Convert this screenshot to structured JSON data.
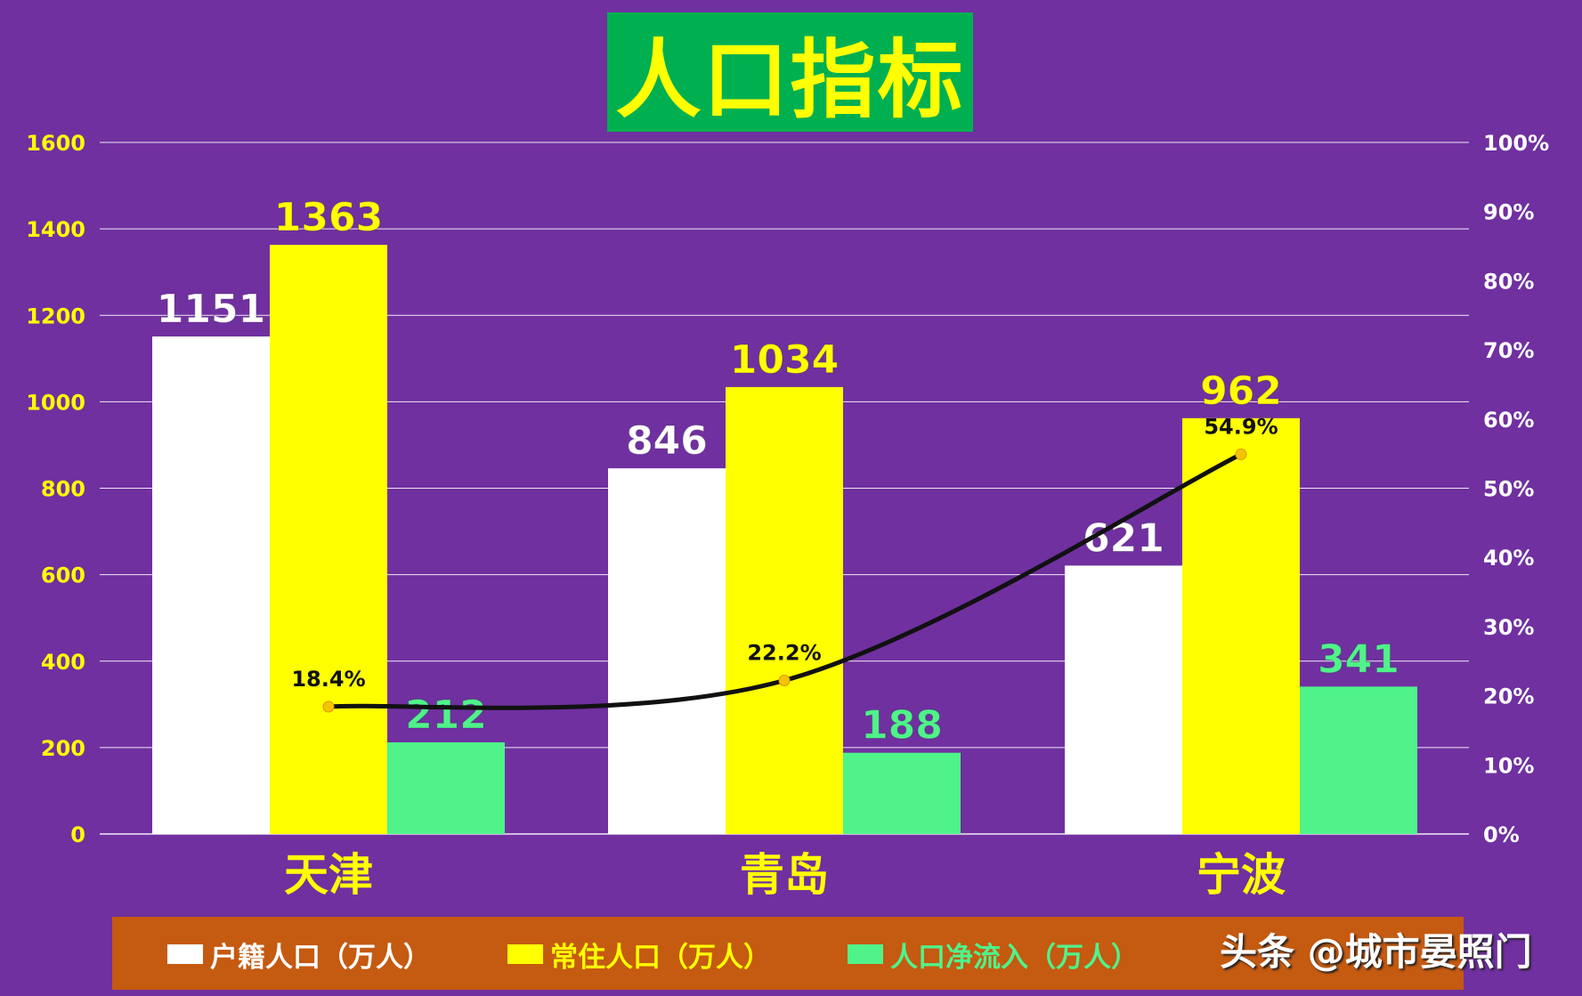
{
  "title": "人口指标",
  "watermark": "头条 @城市晏照门",
  "colors": {
    "background": "#7030a0",
    "title_bg": "#00b050",
    "title_text": "#ffff00",
    "legend_bg": "#c55a11",
    "hukou": "#ffffff",
    "resident": "#ffff00",
    "net_inflow": "#4ff38a",
    "line": "#111111",
    "line_marker": "#f5c400",
    "axis_left_text": "#ffff00",
    "axis_right_text": "#ffffff",
    "category_text": "#ffff00"
  },
  "chart_data": {
    "type": "bar",
    "title": "人口指标",
    "categories": [
      "天津",
      "青岛",
      "宁波"
    ],
    "series": [
      {
        "name": "户籍人口（万人）",
        "values": [
          1151,
          846,
          621
        ]
      },
      {
        "name": "常住人口（万人）",
        "values": [
          1363,
          1034,
          962
        ]
      },
      {
        "name": "人口净流入（万人）",
        "values": [
          212,
          188,
          341
        ]
      }
    ],
    "line_series": {
      "values": [
        18.4,
        22.2,
        54.9
      ],
      "labels": [
        "18.4%",
        "22.2%",
        "54.9%"
      ]
    },
    "y_left": {
      "ylim": [
        0,
        1600
      ],
      "ticks": [
        "0",
        "200",
        "400",
        "600",
        "800",
        "1000",
        "1200",
        "1400",
        "1600"
      ]
    },
    "y_right": {
      "ylim": [
        0,
        100
      ],
      "ticks": [
        "0%",
        "10%",
        "20%",
        "30%",
        "40%",
        "50%",
        "60%",
        "70%",
        "80%",
        "90%",
        "100%"
      ]
    },
    "grid": true,
    "legend_position": "bottom"
  }
}
